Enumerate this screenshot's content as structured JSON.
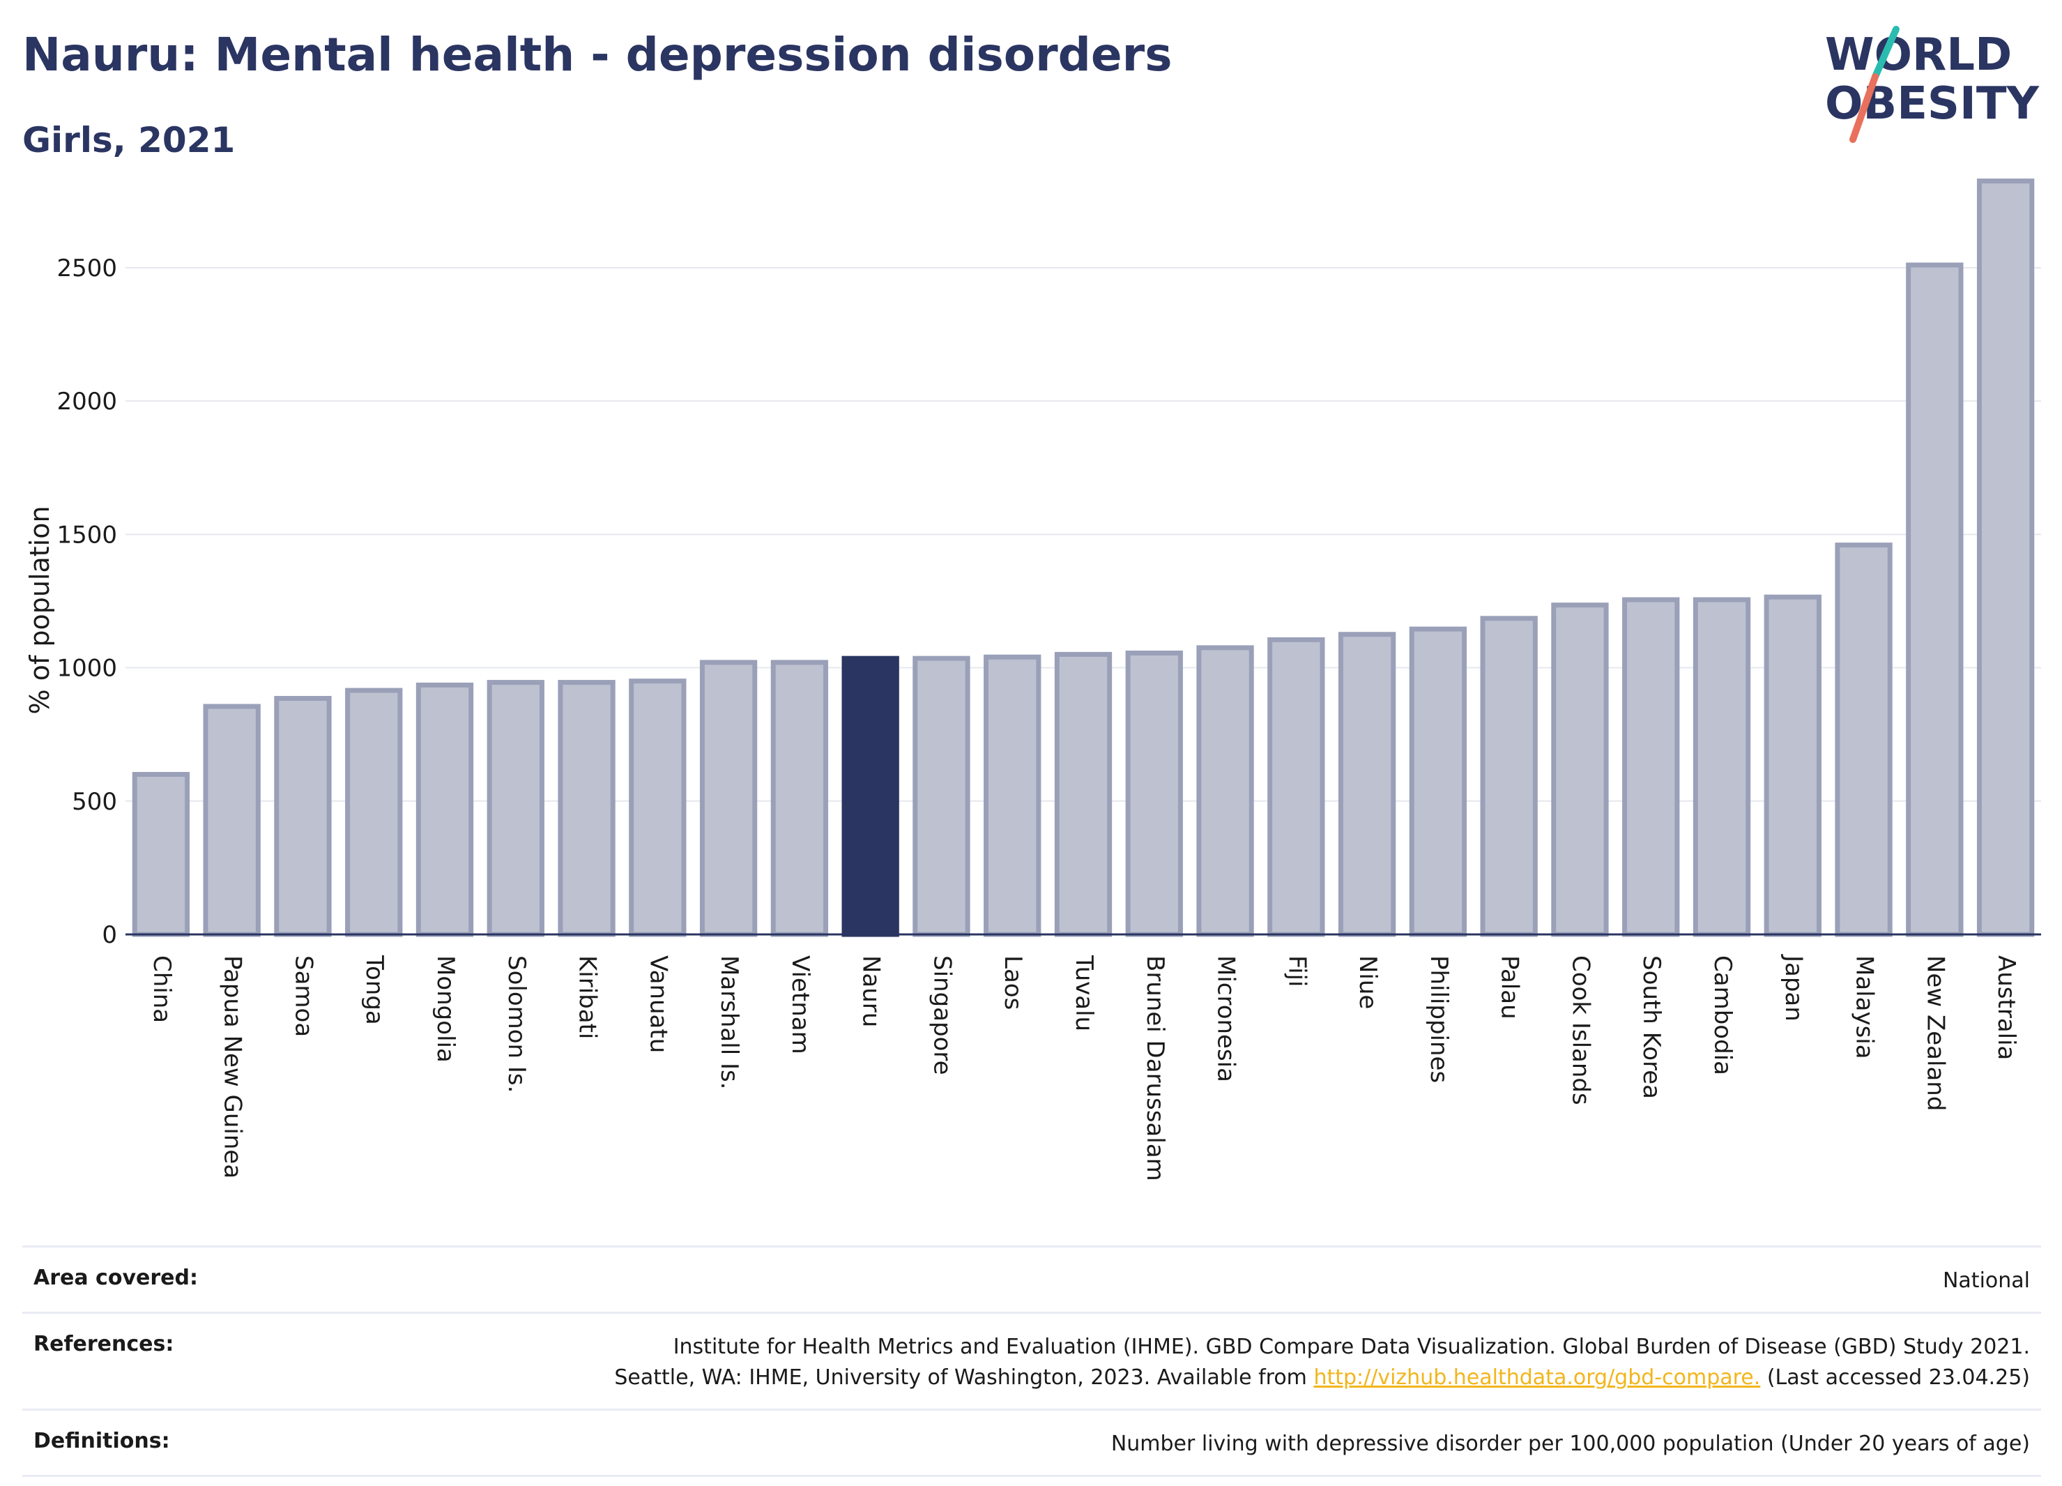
{
  "header": {
    "title": "Nauru: Mental health - depression disorders",
    "subtitle": "Girls, 2021"
  },
  "logo": {
    "line1": "WORLD",
    "line2": "OBESITY"
  },
  "colors": {
    "bar": "#bec2d0",
    "bar_border": "#9aa0b8",
    "highlight": "#2b3562",
    "text": "#2b3562"
  },
  "chart_data": {
    "type": "bar",
    "ylabel": "% of population",
    "ylim": [
      0,
      2850
    ],
    "yticks": [
      0,
      500,
      1000,
      1500,
      2000,
      2500
    ],
    "grid": true,
    "highlight": "Nauru",
    "categories": [
      "China",
      "Papua New Guinea",
      "Samoa",
      "Tonga",
      "Mongolia",
      "Solomon Is.",
      "Kiribati",
      "Vanuatu",
      "Marshall Is.",
      "Vietnam",
      "Nauru",
      "Singapore",
      "Laos",
      "Tuvalu",
      "Brunei Darussalam",
      "Micronesia",
      "Fiji",
      "Niue",
      "Philippines",
      "Palau",
      "Cook Islands",
      "South Korea",
      "Cambodia",
      "Japan",
      "Malaysia",
      "New Zealand",
      "Australia"
    ],
    "values": [
      600,
      855,
      885,
      915,
      935,
      945,
      945,
      950,
      1020,
      1020,
      1035,
      1035,
      1040,
      1050,
      1055,
      1075,
      1105,
      1125,
      1145,
      1185,
      1235,
      1255,
      1255,
      1265,
      1460,
      2510,
      2825
    ]
  },
  "footer": {
    "area_label": "Area covered:",
    "area_value": "National",
    "references_label": "References:",
    "references_line1": "Institute for Health Metrics and Evaluation (IHME). GBD Compare Data Visualization. Global Burden of Disease (GBD) Study 2021.",
    "references_line2_pre": "Seattle, WA: IHME, University of Washington, 2023. Available from ",
    "references_link": "http://vizhub.healthdata.org/gbd-compare.",
    "references_line2_post": " (Last accessed 23.04.25)",
    "definitions_label": "Definitions:",
    "definitions_value": "Number living with depressive disorder per 100,000 population (Under 20 years of age)"
  }
}
